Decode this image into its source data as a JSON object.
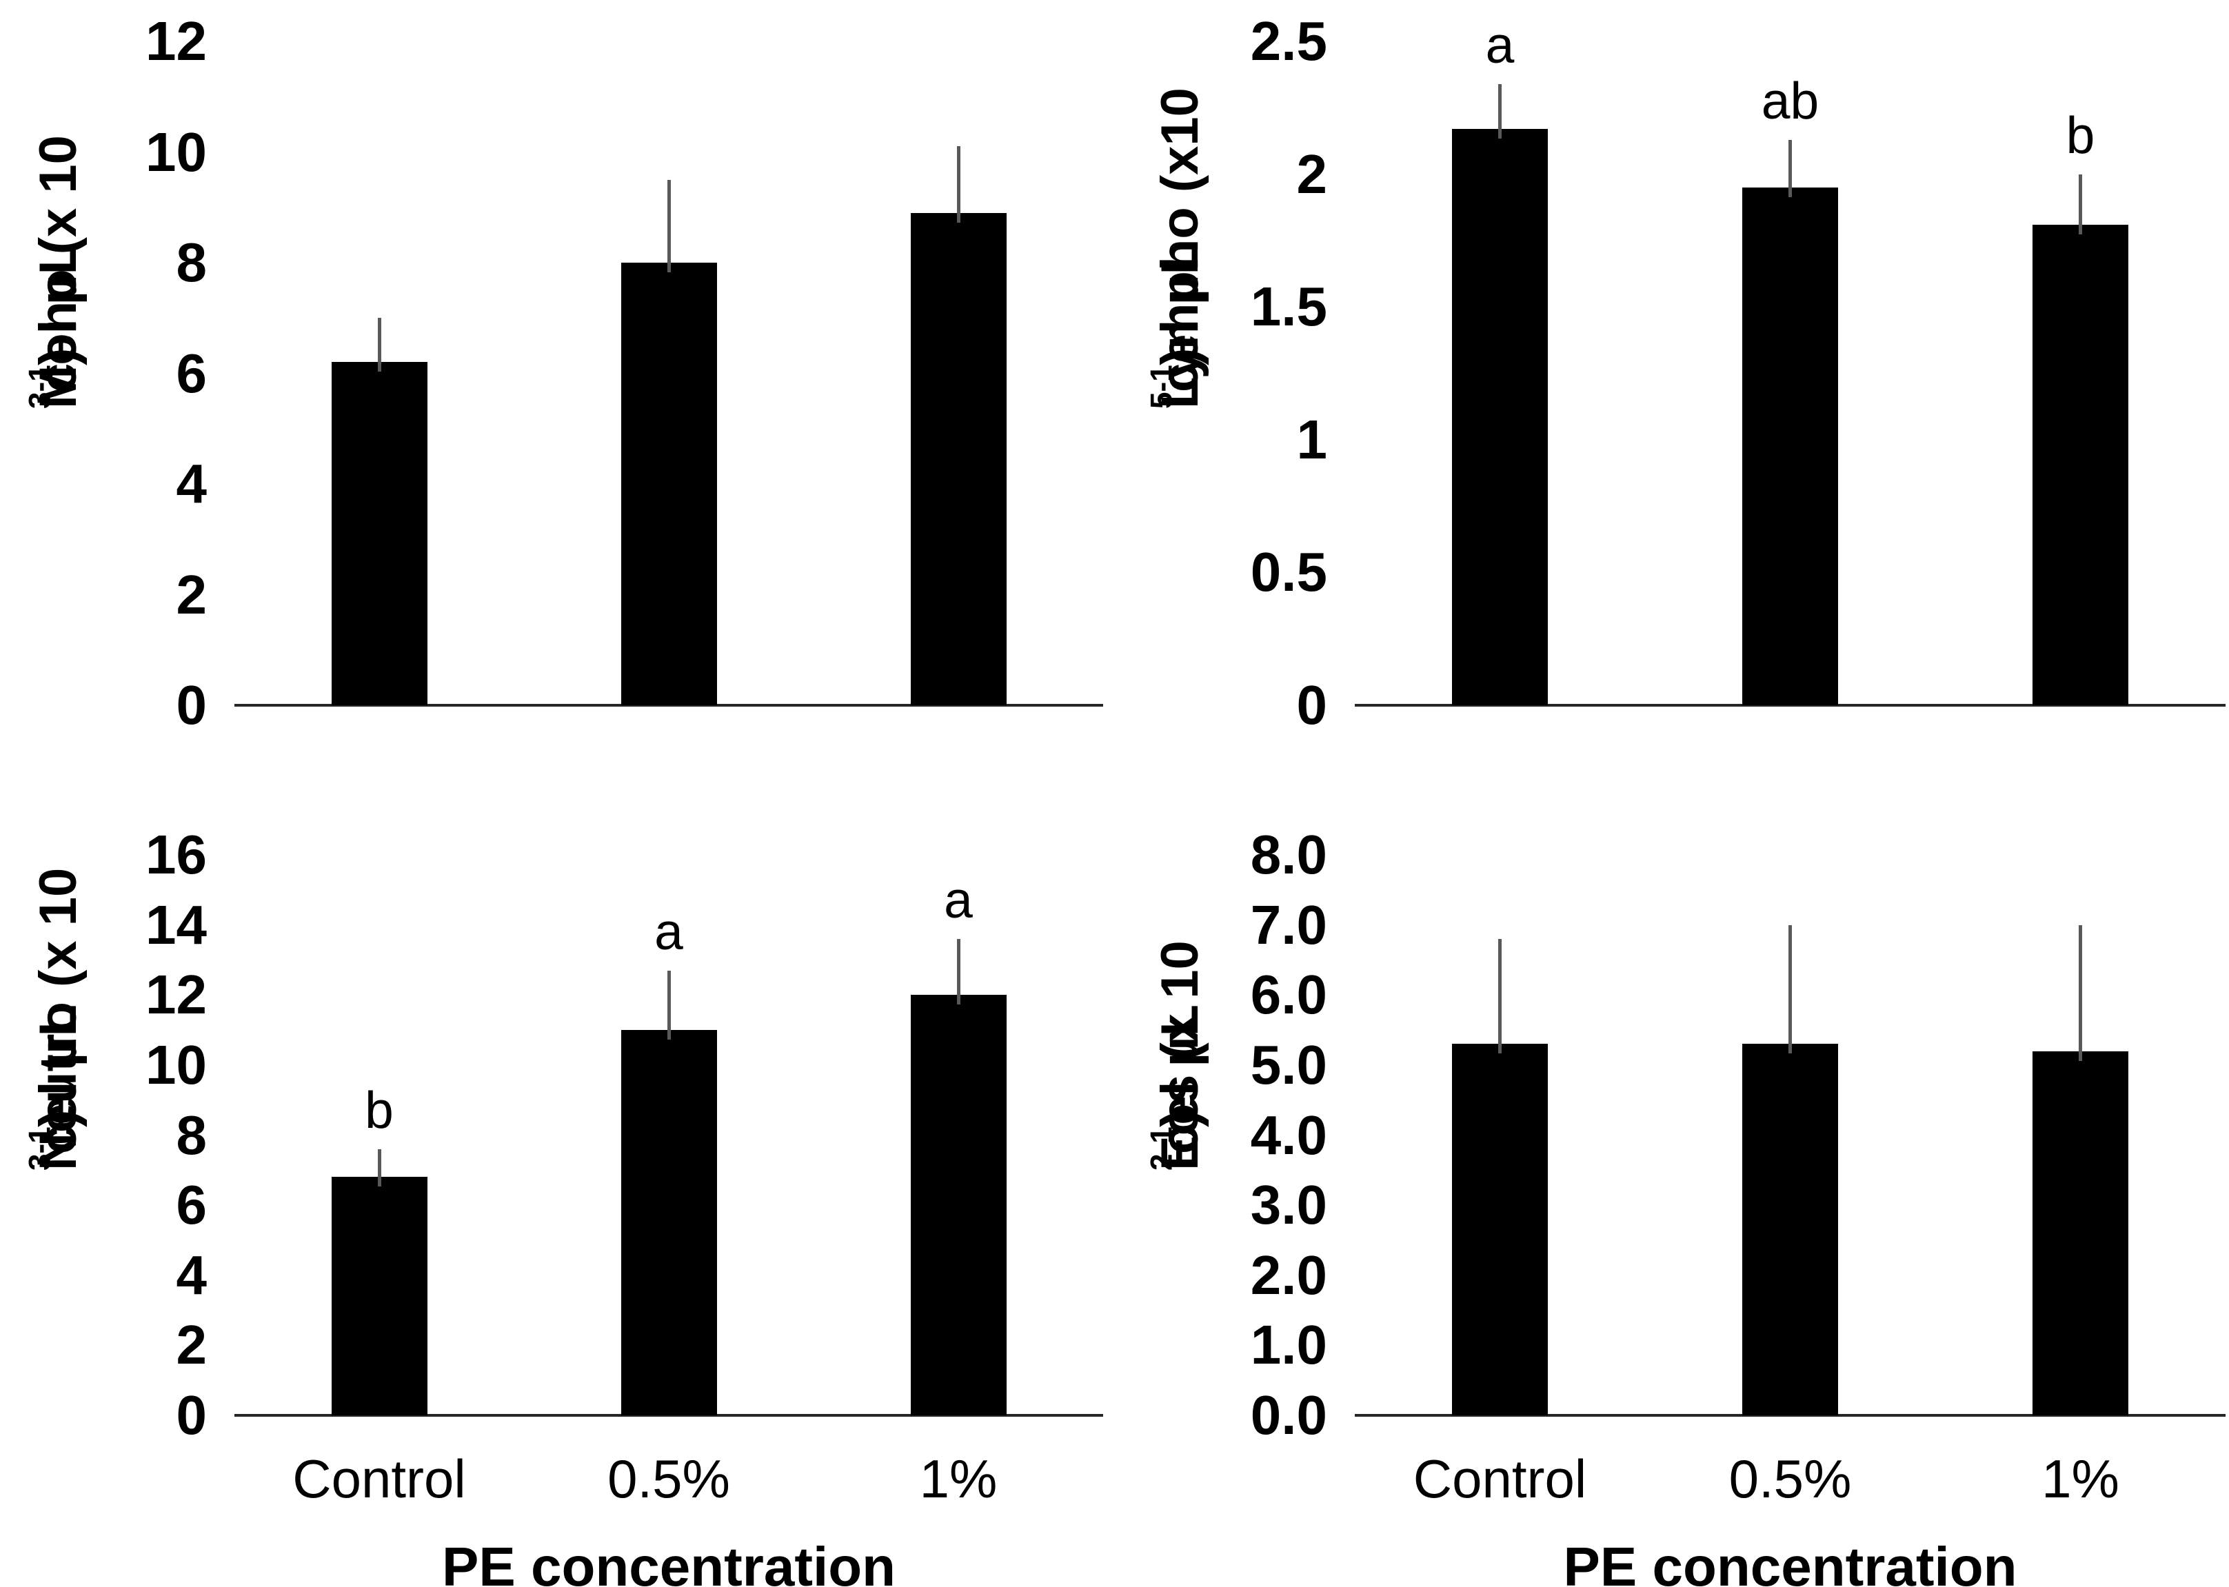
{
  "colors": {
    "bar": "#000000",
    "error_bar": "#595959",
    "axis_line": "#262626",
    "text": "#000000",
    "background": "#ffffff"
  },
  "chart_data": [
    {
      "type": "bar",
      "panel": "top-left",
      "ylabel": "Mono (x 10³ cel µL⁻¹)",
      "ylabel_segments": [
        [
          "text",
          "Mono (x 10"
        ],
        [
          "sup",
          "3"
        ],
        [
          "text",
          " cel µL"
        ],
        [
          "sup",
          "-1"
        ],
        [
          "text",
          ")"
        ]
      ],
      "categories": [
        "Control",
        "0.5%",
        "1%"
      ],
      "values": [
        6.2,
        8.0,
        8.9
      ],
      "error_top": [
        7.0,
        9.5,
        10.1
      ],
      "sig_letters": [
        "",
        "",
        ""
      ],
      "ylim": [
        0,
        12
      ],
      "yticks": [
        "0",
        "2",
        "4",
        "6",
        "8",
        "10",
        "12"
      ],
      "xlabel": "",
      "show_x_tick_labels": false,
      "grid": false,
      "legend": false
    },
    {
      "type": "bar",
      "panel": "top-right",
      "ylabel": "Lympho (x10⁵ cel µL⁻¹)",
      "ylabel_segments": [
        [
          "text",
          "Lympho (x10"
        ],
        [
          "sup",
          "5"
        ],
        [
          "text",
          " cel µL"
        ],
        [
          "sup",
          "-1"
        ],
        [
          "text",
          ")"
        ]
      ],
      "categories": [
        "Control",
        "0.5%",
        "1%"
      ],
      "values": [
        2.17,
        1.95,
        1.81
      ],
      "error_top": [
        2.34,
        2.13,
        2.0
      ],
      "sig_letters": [
        "a",
        "ab",
        "b"
      ],
      "ylim": [
        0,
        2.5
      ],
      "yticks": [
        "0",
        "0.5",
        "1",
        "1.5",
        "2",
        "2.5"
      ],
      "xlabel": "",
      "show_x_tick_labels": false,
      "grid": false,
      "legend": false
    },
    {
      "type": "bar",
      "panel": "bottom-left",
      "ylabel": "Neutro (x 10³ cel µL⁻¹)",
      "ylabel_segments": [
        [
          "text",
          "Neutro (x 10"
        ],
        [
          "sup",
          "3"
        ],
        [
          "text",
          " cel µL"
        ],
        [
          "sup",
          "-1"
        ],
        [
          "text",
          ")"
        ]
      ],
      "categories": [
        "Control",
        "0.5%",
        "1%"
      ],
      "values": [
        6.8,
        11.0,
        12.0
      ],
      "error_top": [
        7.6,
        12.7,
        13.6
      ],
      "sig_letters": [
        "b",
        "a",
        "a"
      ],
      "ylim": [
        0,
        16
      ],
      "yticks": [
        "0",
        "2",
        "4",
        "6",
        "8",
        "10",
        "12",
        "14",
        "16"
      ],
      "xlabel": "PE concentration",
      "show_x_tick_labels": true,
      "grid": false,
      "legend": false
    },
    {
      "type": "bar",
      "panel": "bottom-right",
      "ylabel": "Eos (x 10² cel µL⁻¹)",
      "ylabel_segments": [
        [
          "text",
          "Eos (x 10"
        ],
        [
          "sup",
          "2"
        ],
        [
          "text",
          " cel µL"
        ],
        [
          "sup",
          "-1"
        ],
        [
          "text",
          ")"
        ]
      ],
      "categories": [
        "Control",
        "0.5%",
        "1%"
      ],
      "values": [
        5.3,
        5.3,
        5.2
      ],
      "error_top": [
        6.8,
        7.0,
        7.0
      ],
      "sig_letters": [
        "",
        "",
        ""
      ],
      "ylim": [
        0,
        8
      ],
      "yticks": [
        "0.0",
        "1.0",
        "2.0",
        "3.0",
        "4.0",
        "5.0",
        "6.0",
        "7.0",
        "8.0"
      ],
      "xlabel": "PE concentration",
      "show_x_tick_labels": true,
      "grid": false,
      "legend": false
    }
  ]
}
